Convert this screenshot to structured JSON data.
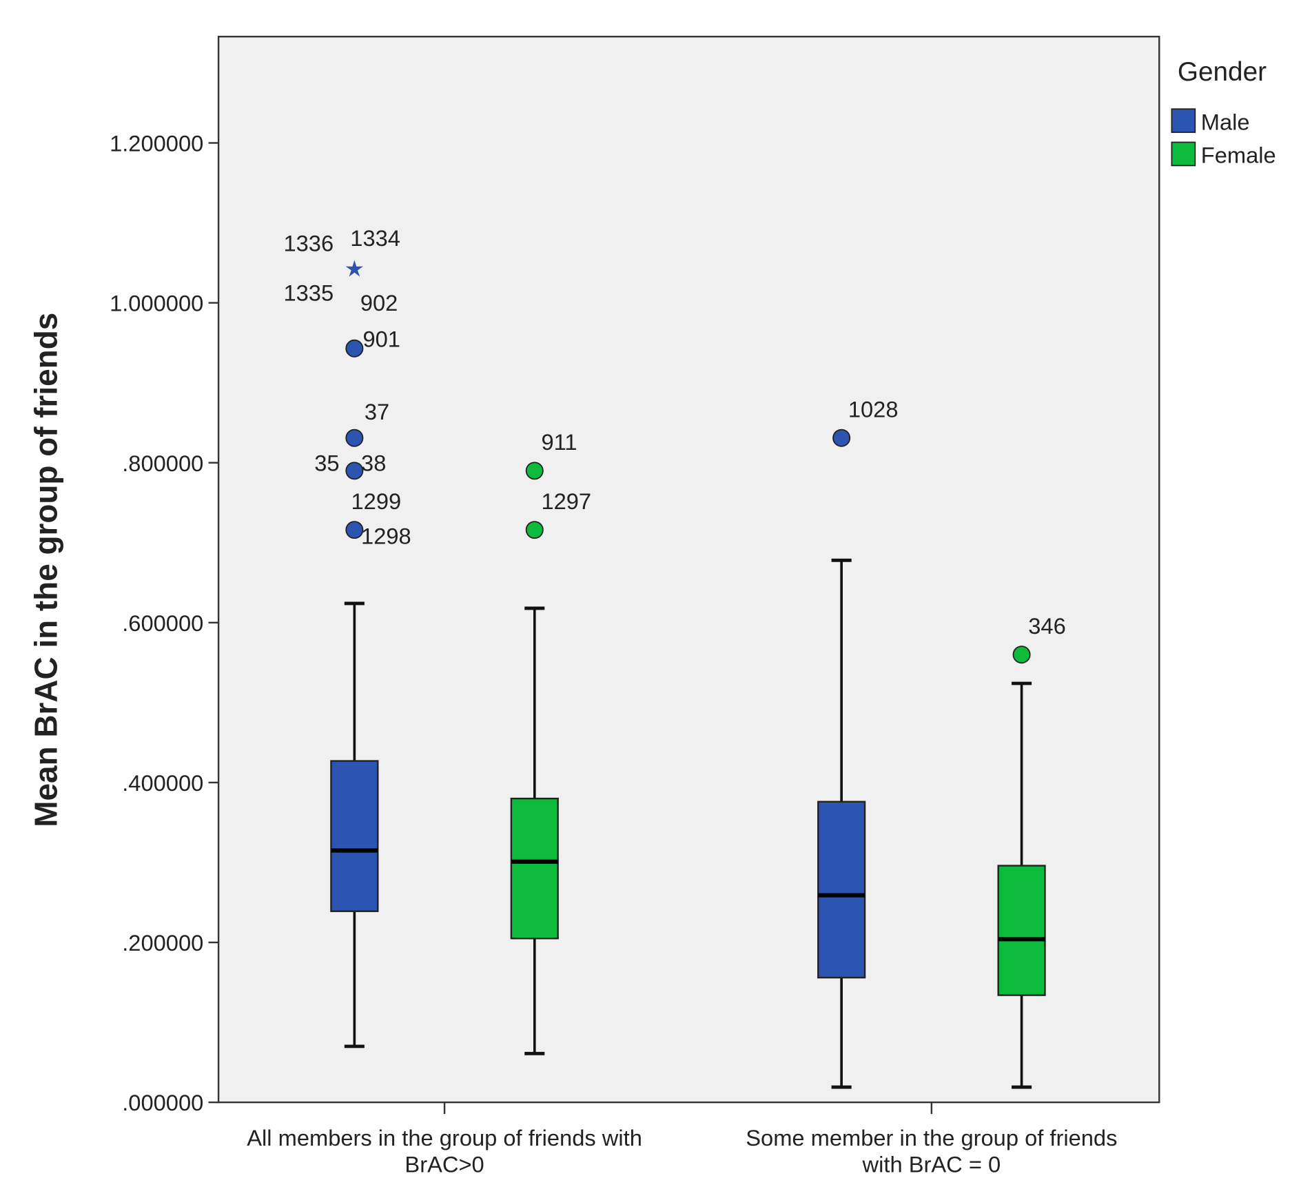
{
  "chart_data": {
    "type": "box",
    "ylabel": "Mean BrAC in the group of friends",
    "legend_title": "Gender",
    "legend_position": "upper right outside",
    "categories": [
      [
        "All members in the group of friends with",
        "BrAC>0"
      ],
      [
        "Some member in the group of friends",
        "with BrAC = 0"
      ]
    ],
    "ylim": [
      0,
      1.333
    ],
    "yticks": [
      {
        "value": 0,
        "label": ".000000"
      },
      {
        "value": 0.2,
        "label": ".200000"
      },
      {
        "value": 0.4,
        "label": ".400000"
      },
      {
        "value": 0.6,
        "label": ".600000"
      },
      {
        "value": 0.8,
        "label": ".800000"
      },
      {
        "value": 1,
        "label": "1.000000"
      },
      {
        "value": 1.2,
        "label": "1.200000"
      }
    ],
    "series": [
      {
        "name": "Male",
        "color": "#2b55b0",
        "boxes": [
          {
            "whislo": 0.07,
            "q1": 0.239,
            "med": 0.315,
            "q3": 0.427,
            "whishi": 0.624,
            "fliers": [
              {
                "value": 1.042,
                "marker": "star",
                "labels": [
                  "1336",
                  "1334",
                  "1335",
                  "902"
                ]
              },
              {
                "value": 0.943,
                "marker": "circle",
                "labels": [
                  "901"
                ]
              },
              {
                "value": 0.831,
                "marker": "circle",
                "labels": [
                  "37"
                ]
              },
              {
                "value": 0.79,
                "marker": "circle",
                "labels": [
                  "35",
                  "38"
                ]
              },
              {
                "value": 0.716,
                "marker": "circle",
                "labels": [
                  "1299",
                  "1298"
                ]
              }
            ]
          },
          {
            "whislo": 0.019,
            "q1": 0.156,
            "med": 0.259,
            "q3": 0.376,
            "whishi": 0.678,
            "fliers": [
              {
                "value": 0.831,
                "marker": "circle",
                "labels": [
                  "1028"
                ]
              }
            ]
          }
        ]
      },
      {
        "name": "Female",
        "color": "#0dbb3c",
        "boxes": [
          {
            "whislo": 0.061,
            "q1": 0.205,
            "med": 0.301,
            "q3": 0.38,
            "whishi": 0.618,
            "fliers": [
              {
                "value": 0.79,
                "marker": "circle",
                "labels": [
                  "911"
                ]
              },
              {
                "value": 0.716,
                "marker": "circle",
                "labels": [
                  "1297"
                ]
              }
            ]
          },
          {
            "whislo": 0.019,
            "q1": 0.134,
            "med": 0.204,
            "q3": 0.296,
            "whishi": 0.524,
            "fliers": [
              {
                "value": 0.56,
                "marker": "circle",
                "labels": [
                  "346"
                ]
              }
            ]
          }
        ]
      }
    ]
  }
}
